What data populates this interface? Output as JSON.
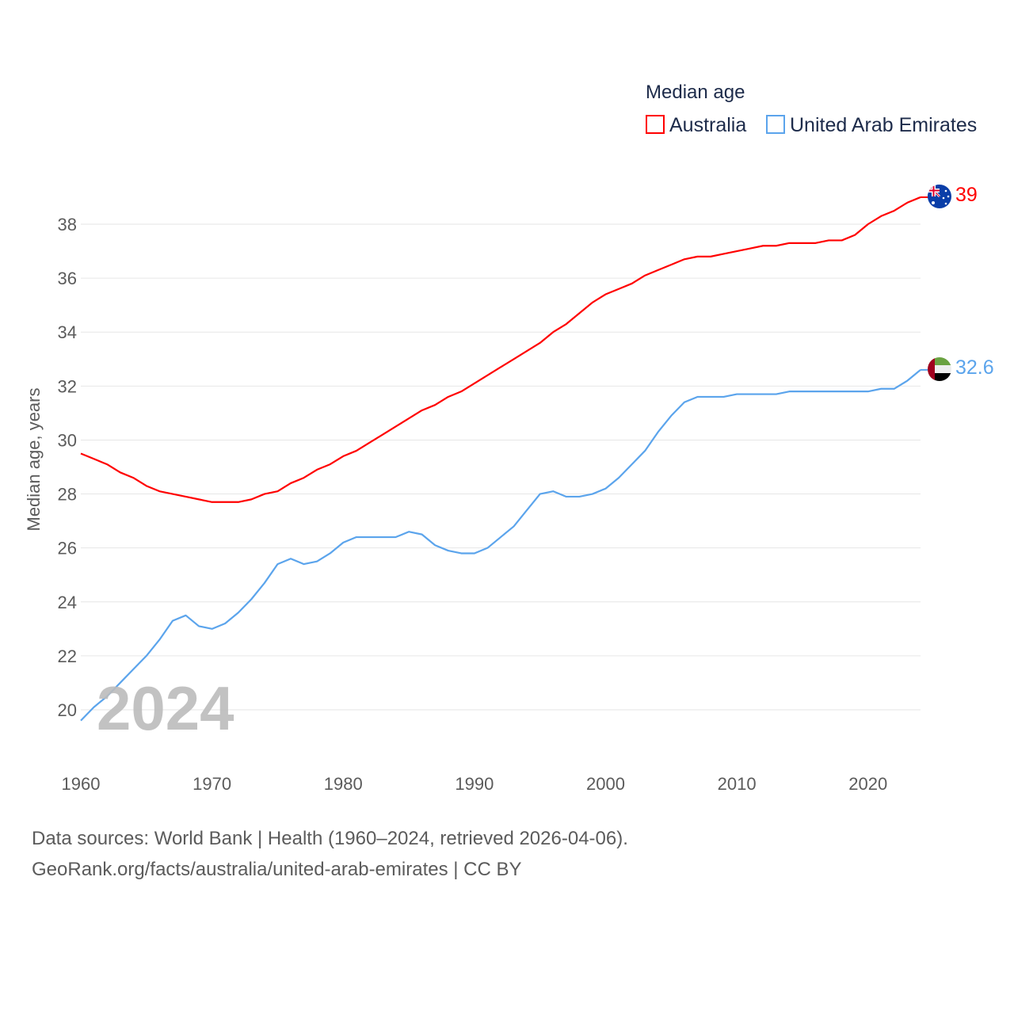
{
  "chart_data": {
    "type": "line",
    "title": "Median age",
    "ylabel": "Median age, years",
    "xlabel": "",
    "xlim": [
      1960,
      2024
    ],
    "ylim": [
      19.2,
      39.5
    ],
    "x_ticks": [
      1960,
      1970,
      1980,
      1990,
      2000,
      2010,
      2020
    ],
    "y_ticks": [
      20,
      22,
      24,
      26,
      28,
      30,
      32,
      34,
      36,
      38
    ],
    "grid": true,
    "legend_placement": "top-right",
    "watermark_year": "2024",
    "x": [
      1960,
      1961,
      1962,
      1963,
      1964,
      1965,
      1966,
      1967,
      1968,
      1969,
      1970,
      1971,
      1972,
      1973,
      1974,
      1975,
      1976,
      1977,
      1978,
      1979,
      1980,
      1981,
      1982,
      1983,
      1984,
      1985,
      1986,
      1987,
      1988,
      1989,
      1990,
      1991,
      1992,
      1993,
      1994,
      1995,
      1996,
      1997,
      1998,
      1999,
      2000,
      2001,
      2002,
      2003,
      2004,
      2005,
      2006,
      2007,
      2008,
      2009,
      2010,
      2011,
      2012,
      2013,
      2014,
      2015,
      2016,
      2017,
      2018,
      2019,
      2020,
      2021,
      2022,
      2023,
      2024
    ],
    "series": [
      {
        "name": "Australia",
        "color": "#ff0000",
        "end_label": "39",
        "flag": "australia-flag",
        "values": [
          29.5,
          29.3,
          29.1,
          28.8,
          28.6,
          28.3,
          28.1,
          28.0,
          27.9,
          27.8,
          27.7,
          27.7,
          27.7,
          27.8,
          28.0,
          28.1,
          28.4,
          28.6,
          28.9,
          29.1,
          29.4,
          29.6,
          29.9,
          30.2,
          30.5,
          30.8,
          31.1,
          31.3,
          31.6,
          31.8,
          32.1,
          32.4,
          32.7,
          33.0,
          33.3,
          33.6,
          34.0,
          34.3,
          34.7,
          35.1,
          35.4,
          35.6,
          35.8,
          36.1,
          36.3,
          36.5,
          36.7,
          36.8,
          36.8,
          36.9,
          37.0,
          37.1,
          37.2,
          37.2,
          37.3,
          37.3,
          37.3,
          37.4,
          37.4,
          37.6,
          38.0,
          38.3,
          38.5,
          38.8,
          39.0
        ]
      },
      {
        "name": "United Arab Emirates",
        "color": "#5ba4ec",
        "end_label": "32.6",
        "flag": "uae-flag",
        "values": [
          19.6,
          20.1,
          20.5,
          21.0,
          21.5,
          22.0,
          22.6,
          23.3,
          23.5,
          23.1,
          23.0,
          23.2,
          23.6,
          24.1,
          24.7,
          25.4,
          25.6,
          25.4,
          25.5,
          25.8,
          26.2,
          26.4,
          26.4,
          26.4,
          26.4,
          26.6,
          26.5,
          26.1,
          25.9,
          25.8,
          25.8,
          26.0,
          26.4,
          26.8,
          27.4,
          28.0,
          28.1,
          27.9,
          27.9,
          28.0,
          28.2,
          28.6,
          29.1,
          29.6,
          30.3,
          30.9,
          31.4,
          31.6,
          31.6,
          31.6,
          31.7,
          31.7,
          31.7,
          31.7,
          31.8,
          31.8,
          31.8,
          31.8,
          31.8,
          31.8,
          31.8,
          31.9,
          31.9,
          32.2,
          32.6
        ]
      }
    ]
  },
  "footer": {
    "line1": "Data sources: World Bank | Health (1960–2024, retrieved 2026-04-06).",
    "line2": "GeoRank.org/facts/australia/united-arab-emirates | CC BY"
  }
}
